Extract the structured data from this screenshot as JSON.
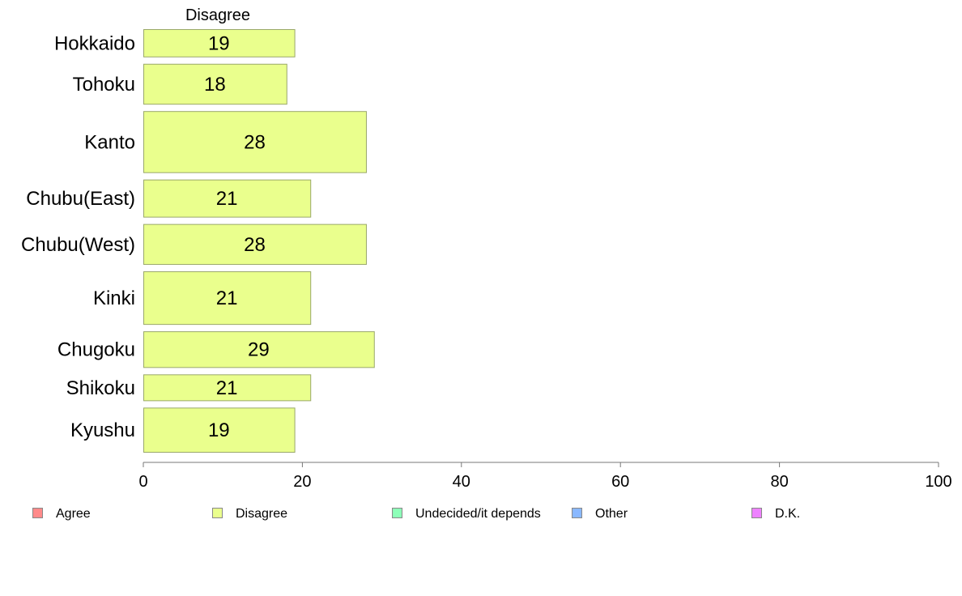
{
  "chart_data": {
    "type": "bar",
    "orientation": "horizontal",
    "panel_title": "Disagree",
    "categories": [
      "Hokkaido",
      "Tohoku",
      "Kanto",
      "Chubu(East)",
      "Chubu(West)",
      "Kinki",
      "Chugoku",
      "Shikoku",
      "Kyushu"
    ],
    "values": [
      19,
      18,
      28,
      21,
      28,
      21,
      29,
      21,
      19
    ],
    "bar_weights": [
      1.0,
      1.45,
      2.2,
      1.35,
      1.45,
      1.9,
      1.3,
      0.95,
      1.6
    ],
    "data_labels": [
      "19",
      "18",
      "28",
      "21",
      "28",
      "21",
      "29",
      "21",
      "19"
    ],
    "xlim": [
      0,
      100
    ],
    "xticks": [
      0,
      20,
      40,
      60,
      80,
      100
    ],
    "tick_labels": [
      "0",
      "20",
      "40",
      "60",
      "80",
      "100"
    ],
    "grid": false,
    "bar_color": "#eaff8d",
    "bar_stroke": "#9aa86a",
    "legend_position": "bottom",
    "legend": [
      {
        "label": "Agree",
        "color": "#ff8a8a"
      },
      {
        "label": "Disagree",
        "color": "#eaff8d"
      },
      {
        "label": "Undecided/it depends",
        "color": "#8dffb8"
      },
      {
        "label": "Other",
        "color": "#8ab8ff"
      },
      {
        "label": "D.K.",
        "color": "#ee82ff"
      }
    ]
  }
}
